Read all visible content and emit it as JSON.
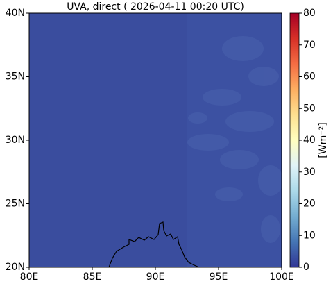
{
  "chart_data": {
    "type": "map",
    "title": "UVA, direct ( 2026-04-11 00:20 UTC)",
    "xlim": [
      80,
      100
    ],
    "xticks": [
      {
        "value": 80,
        "label": "80E"
      },
      {
        "value": 85,
        "label": "85E"
      },
      {
        "value": 90,
        "label": "90E"
      },
      {
        "value": 95,
        "label": "95E"
      },
      {
        "value": 100,
        "label": "100E"
      }
    ],
    "ylim": [
      20,
      40
    ],
    "yticks": [
      {
        "value": 20,
        "label": "20N"
      },
      {
        "value": 25,
        "label": "25N"
      },
      {
        "value": 30,
        "label": "30N"
      },
      {
        "value": 35,
        "label": "35N"
      },
      {
        "value": 40,
        "label": "40N"
      }
    ],
    "colorbar": {
      "label": "[Wm⁻²]",
      "lim": [
        0,
        80
      ],
      "ticks": [
        0,
        10,
        20,
        30,
        40,
        50,
        60,
        70,
        80
      ],
      "colormap": "RdYlBu_r"
    }
  }
}
